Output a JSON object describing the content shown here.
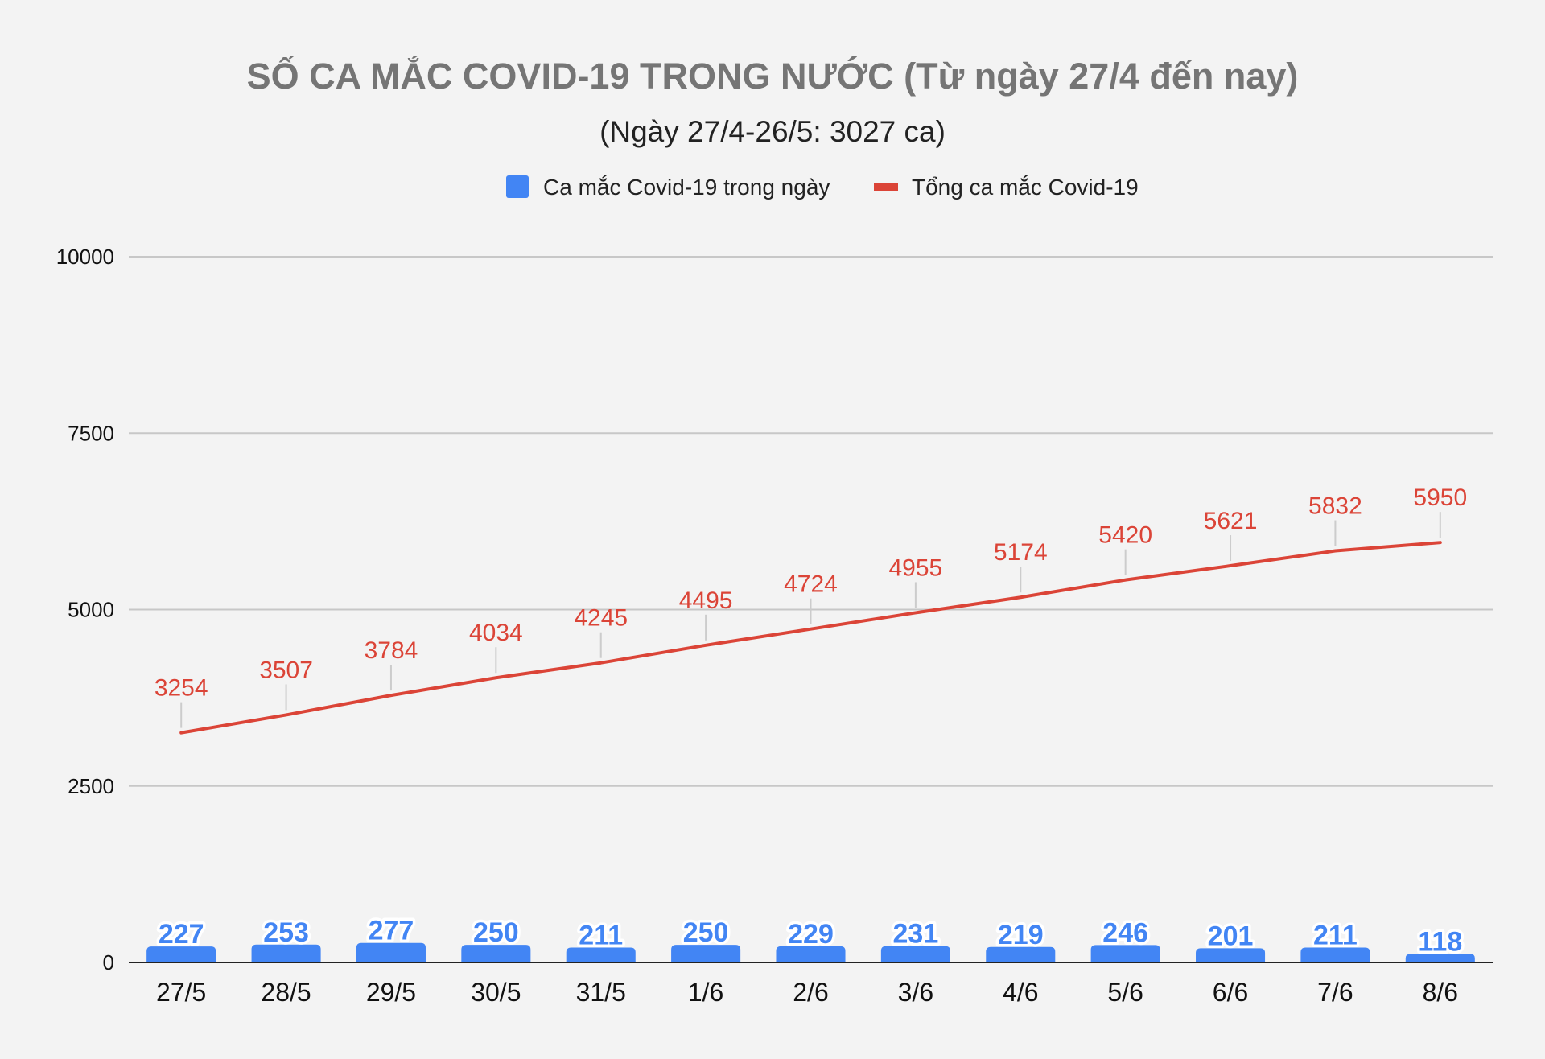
{
  "chart_data": {
    "type": "bar+line",
    "title": "SỐ CA MẮC COVID-19 TRONG NƯỚC (Từ ngày 27/4 đến nay)",
    "subtitle": "(Ngày 27/4-26/5: 3027 ca)",
    "categories": [
      "27/5",
      "28/5",
      "29/5",
      "30/5",
      "31/5",
      "1/6",
      "2/6",
      "3/6",
      "4/6",
      "5/6",
      "6/6",
      "7/6",
      "8/6"
    ],
    "series": [
      {
        "name": "Ca mắc Covid-19 trong ngày",
        "type": "bar",
        "color": "#4285f4",
        "values": [
          227,
          253,
          277,
          250,
          211,
          250,
          229,
          231,
          219,
          246,
          201,
          211,
          118
        ]
      },
      {
        "name": "Tổng ca mắc Covid-19",
        "type": "line",
        "color": "#db4437",
        "values": [
          3254,
          3507,
          3784,
          4034,
          4245,
          4495,
          4724,
          4955,
          5174,
          5420,
          5621,
          5832,
          5950
        ]
      }
    ],
    "yticks": [
      "0",
      "2500",
      "5000",
      "7500",
      "10000"
    ],
    "ylim": [
      0,
      10000
    ],
    "grid": true,
    "legend_position": "top-center"
  }
}
